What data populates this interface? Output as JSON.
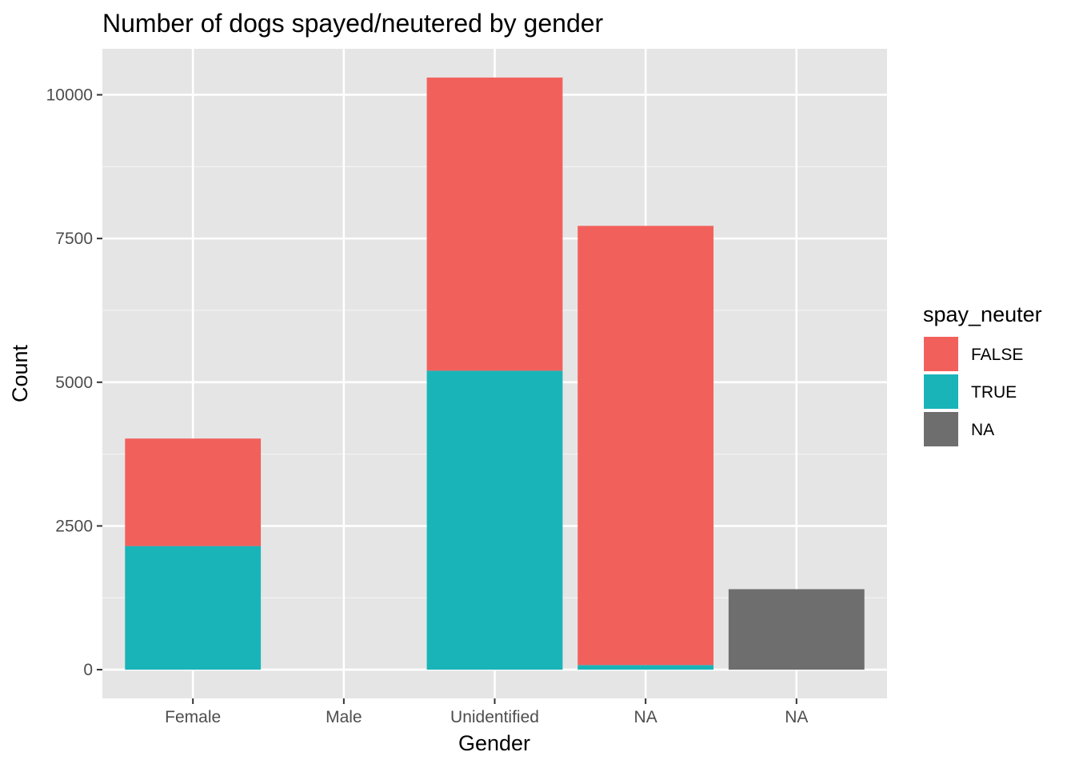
{
  "chart_data": {
    "type": "bar",
    "stacked": true,
    "title": "Number of dogs spayed/neutered by gender",
    "xlabel": "Gender",
    "ylabel": "Count",
    "categories": [
      "Female",
      "Male",
      "Unidentified",
      "NA",
      "NA"
    ],
    "yticks": [
      "0",
      "2500",
      "5000",
      "7500",
      "10000"
    ],
    "ylim": [
      -500,
      10800
    ],
    "grid": true,
    "legend": {
      "title": "spay_neuter",
      "placement": "right",
      "entries": [
        "FALSE",
        "TRUE",
        "NA"
      ]
    },
    "series": [
      {
        "name": "TRUE",
        "color": "#19B4B8",
        "values": [
          2150,
          0,
          5200,
          80,
          0
        ]
      },
      {
        "name": "FALSE",
        "color": "#F2605C",
        "values": [
          1870,
          0,
          5100,
          7640,
          0
        ]
      },
      {
        "name": "NA",
        "color": "#6E6E6E",
        "values": [
          0,
          0,
          0,
          0,
          1400
        ]
      }
    ],
    "colors": {
      "panel": "#E5E5E5",
      "grid": "#FFFFFF"
    }
  }
}
